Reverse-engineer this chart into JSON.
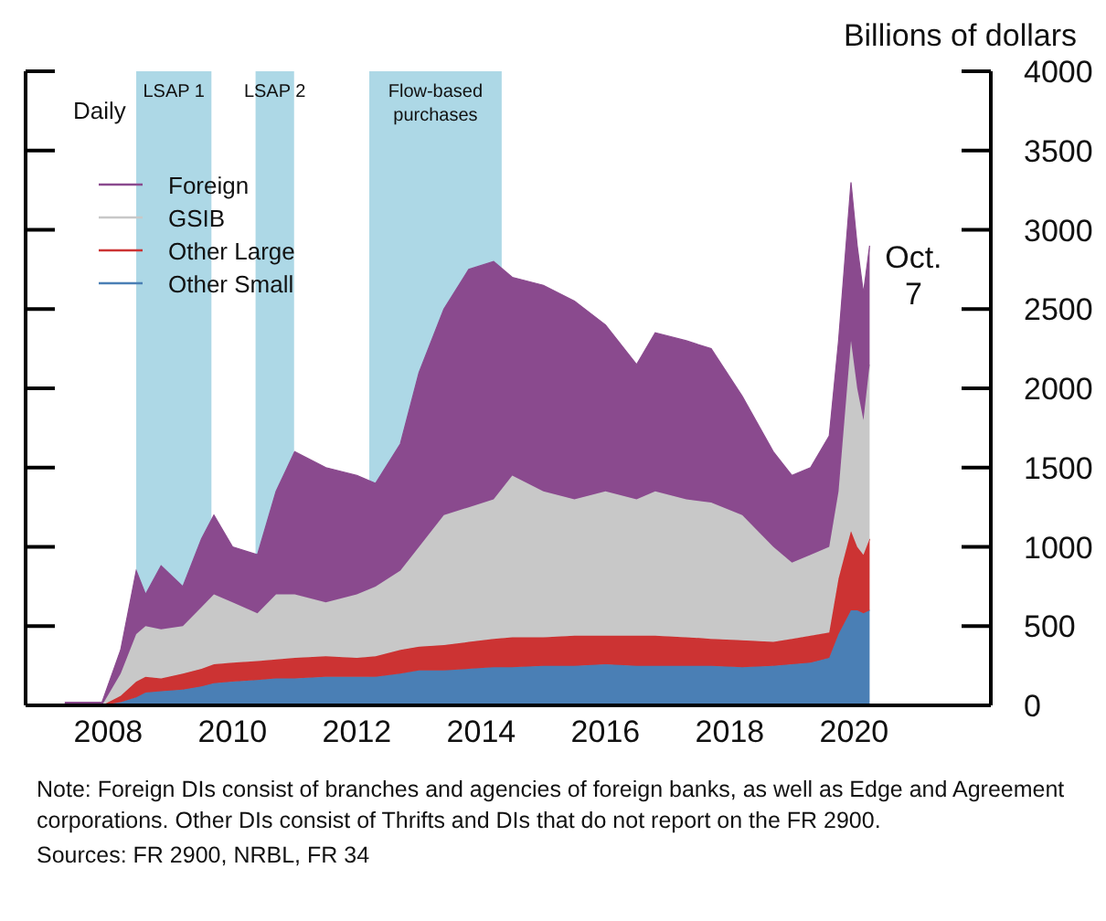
{
  "chart_data": {
    "type": "area",
    "stacked": true,
    "ylabel": "Billions of dollars",
    "xlim": [
      2006.67,
      2022.2
    ],
    "xticks": [
      2008,
      2010,
      2012,
      2014,
      2016,
      2018,
      2020
    ],
    "ylim": [
      0,
      4000
    ],
    "yticks": [
      0,
      500,
      1000,
      1500,
      2000,
      2500,
      3000,
      3500,
      4000
    ],
    "grid": false,
    "legend": "top left",
    "x": [
      2007.3,
      2007.9,
      2008.2,
      2008.45,
      2008.6,
      2008.85,
      2009.2,
      2009.5,
      2009.7,
      2010.0,
      2010.4,
      2010.7,
      2011.0,
      2011.5,
      2012.0,
      2012.3,
      2012.7,
      2013.0,
      2013.4,
      2013.8,
      2014.2,
      2014.5,
      2015.0,
      2015.5,
      2016.0,
      2016.5,
      2016.8,
      2017.3,
      2017.7,
      2018.2,
      2018.7,
      2019.0,
      2019.3,
      2019.6,
      2019.75,
      2019.95,
      2020.05,
      2020.15,
      2020.25
    ],
    "series": [
      {
        "name": "Other Small",
        "color": "#4a7fb5",
        "values": [
          0,
          0,
          20,
          50,
          80,
          90,
          100,
          120,
          140,
          150,
          160,
          170,
          170,
          180,
          180,
          180,
          200,
          220,
          220,
          230,
          240,
          240,
          250,
          250,
          260,
          250,
          250,
          250,
          250,
          240,
          250,
          260,
          270,
          300,
          450,
          600,
          600,
          580,
          600
        ]
      },
      {
        "name": "Other Large",
        "color": "#cc3333",
        "values": [
          0,
          0,
          40,
          100,
          100,
          80,
          100,
          110,
          120,
          120,
          120,
          120,
          130,
          130,
          120,
          130,
          150,
          150,
          160,
          170,
          180,
          190,
          180,
          190,
          180,
          190,
          190,
          180,
          170,
          170,
          150,
          160,
          170,
          160,
          350,
          500,
          400,
          370,
          450
        ]
      },
      {
        "name": "GSIB",
        "color": "#c8c8c8",
        "values": [
          0,
          0,
          140,
          300,
          320,
          310,
          300,
          390,
          440,
          380,
          300,
          410,
          400,
          340,
          400,
          440,
          500,
          630,
          820,
          850,
          880,
          1020,
          920,
          860,
          910,
          860,
          910,
          870,
          860,
          790,
          600,
          480,
          510,
          540,
          550,
          1200,
          1000,
          850,
          1100
        ]
      },
      {
        "name": "Foreign",
        "color": "#8a4a8e",
        "values": [
          20,
          20,
          150,
          400,
          200,
          400,
          250,
          430,
          500,
          350,
          370,
          650,
          900,
          850,
          750,
          650,
          800,
          1100,
          1300,
          1500,
          1500,
          1250,
          1300,
          1250,
          1050,
          850,
          1000,
          1000,
          970,
          750,
          600,
          550,
          550,
          700,
          950,
          1000,
          900,
          800,
          750
        ]
      }
    ],
    "bands": [
      {
        "axis": "x",
        "from": 2008.45,
        "to": 2009.66,
        "label": "LSAP 1",
        "color": "#add8e6"
      },
      {
        "axis": "x",
        "from": 2010.37,
        "to": 2010.99,
        "label": "LSAP 2",
        "color": "#add8e6"
      },
      {
        "axis": "x",
        "from": 2012.2,
        "to": 2014.33,
        "label": "Flow-based purchases",
        "color": "#add8e6"
      }
    ],
    "annotations": [
      "Daily",
      {
        "text": "Oct. 7",
        "x": 2020.25,
        "y": 2900
      },
      "Note: Foreign DIs consist of branches and agencies of foreign banks, as well as Edge and Agreement corporations. Other DIs consist of Thrifts and DIs that do not report on the FR 2900.",
      "Sources: FR 2900, NRBL, FR 34"
    ]
  }
}
